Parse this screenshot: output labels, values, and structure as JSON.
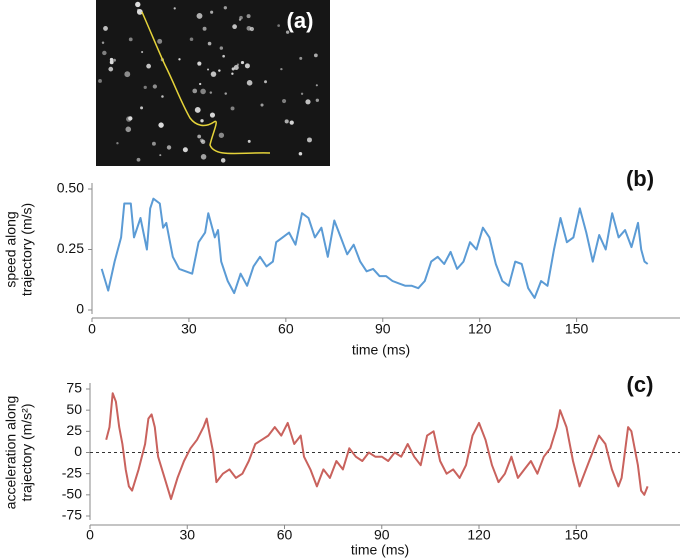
{
  "image_panel": {
    "label": "(a)"
  },
  "chart_data": [
    {
      "type": "line",
      "panel_label": "(b)",
      "xlabel": "time (ms)",
      "ylabel": [
        "speed along",
        "trajectory (m/s)"
      ],
      "x": [
        3,
        5,
        7,
        9,
        10,
        12,
        13,
        15,
        17,
        18,
        19,
        21,
        22,
        23,
        25,
        27,
        29,
        31,
        33,
        35,
        36,
        38,
        39,
        40,
        42,
        44,
        46,
        48,
        50,
        52,
        54,
        56,
        57,
        59,
        61,
        63,
        65,
        67,
        69,
        71,
        73,
        75,
        77,
        79,
        81,
        83,
        85,
        87,
        89,
        91,
        93,
        95,
        97,
        99,
        101,
        103,
        105,
        107,
        109,
        111,
        113,
        115,
        117,
        119,
        121,
        123,
        125,
        127,
        129,
        131,
        133,
        135,
        137,
        139,
        141,
        143,
        145,
        147,
        149,
        151,
        153,
        155,
        157,
        159,
        161,
        163,
        165,
        167,
        169,
        170,
        171,
        172
      ],
      "series": [
        {
          "color": "#5b9bd5",
          "values": [
            0.17,
            0.08,
            0.2,
            0.3,
            0.44,
            0.44,
            0.3,
            0.38,
            0.25,
            0.42,
            0.46,
            0.44,
            0.34,
            0.36,
            0.22,
            0.17,
            0.16,
            0.15,
            0.28,
            0.32,
            0.4,
            0.3,
            0.33,
            0.2,
            0.12,
            0.07,
            0.15,
            0.1,
            0.18,
            0.22,
            0.18,
            0.2,
            0.28,
            0.3,
            0.32,
            0.27,
            0.4,
            0.38,
            0.3,
            0.34,
            0.22,
            0.37,
            0.3,
            0.23,
            0.27,
            0.2,
            0.16,
            0.17,
            0.14,
            0.14,
            0.12,
            0.11,
            0.1,
            0.1,
            0.09,
            0.12,
            0.2,
            0.22,
            0.19,
            0.24,
            0.17,
            0.2,
            0.28,
            0.25,
            0.34,
            0.3,
            0.19,
            0.12,
            0.1,
            0.2,
            0.19,
            0.09,
            0.05,
            0.12,
            0.1,
            0.25,
            0.38,
            0.28,
            0.3,
            0.42,
            0.32,
            0.2,
            0.31,
            0.25,
            0.4,
            0.3,
            0.33,
            0.26,
            0.36,
            0.25,
            0.2,
            0.19
          ]
        }
      ],
      "xlim": [
        0,
        182
      ],
      "xticks": [
        0,
        30,
        60,
        90,
        120,
        150
      ],
      "ylim": [
        0,
        0.5
      ],
      "yticks": [
        0,
        0.25,
        {
          "value": 0.5,
          "label": "0.50"
        }
      ],
      "zero_line": false
    },
    {
      "type": "line",
      "panel_label": "(c)",
      "xlabel": "time (ms)",
      "ylabel": [
        "acceleration along",
        "trajectory (m/s²)"
      ],
      "x": [
        5,
        6,
        7,
        8,
        9,
        10,
        11,
        12,
        13,
        15,
        17,
        18,
        19,
        20,
        21,
        23,
        25,
        27,
        29,
        31,
        33,
        35,
        36,
        37,
        38,
        39,
        41,
        43,
        45,
        47,
        49,
        51,
        53,
        55,
        57,
        59,
        61,
        63,
        65,
        66,
        68,
        70,
        72,
        74,
        76,
        78,
        80,
        82,
        84,
        86,
        88,
        90,
        92,
        94,
        96,
        98,
        100,
        102,
        104,
        106,
        108,
        110,
        112,
        114,
        116,
        118,
        120,
        122,
        124,
        126,
        128,
        130,
        132,
        134,
        136,
        138,
        140,
        142,
        144,
        145,
        147,
        149,
        151,
        153,
        155,
        157,
        159,
        161,
        163,
        164,
        166,
        167,
        169,
        170,
        171,
        172
      ],
      "series": [
        {
          "color": "#c9625d",
          "values": [
            15,
            30,
            70,
            60,
            30,
            10,
            -20,
            -40,
            -45,
            -20,
            10,
            40,
            45,
            30,
            -5,
            -30,
            -55,
            -30,
            -10,
            5,
            15,
            30,
            40,
            20,
            0,
            -35,
            -25,
            -20,
            -30,
            -25,
            -10,
            10,
            15,
            20,
            30,
            20,
            35,
            10,
            20,
            -5,
            -20,
            -40,
            -20,
            -30,
            -10,
            -20,
            5,
            -5,
            -10,
            0,
            -5,
            -5,
            -10,
            0,
            -5,
            10,
            -5,
            -15,
            20,
            25,
            -10,
            -25,
            -20,
            -30,
            -15,
            20,
            35,
            15,
            -15,
            -35,
            -25,
            -5,
            -30,
            -20,
            -10,
            -25,
            -5,
            5,
            30,
            50,
            30,
            -10,
            -40,
            -20,
            0,
            20,
            10,
            -20,
            -40,
            -30,
            30,
            25,
            -15,
            -45,
            -50,
            -40
          ]
        }
      ],
      "xlim": [
        0,
        182
      ],
      "xticks": [
        0,
        30,
        60,
        90,
        120,
        150
      ],
      "ylim": [
        -75,
        75
      ],
      "yticks": [
        75,
        50,
        25,
        0,
        -25,
        -50,
        -75
      ],
      "zero_line": true
    }
  ]
}
